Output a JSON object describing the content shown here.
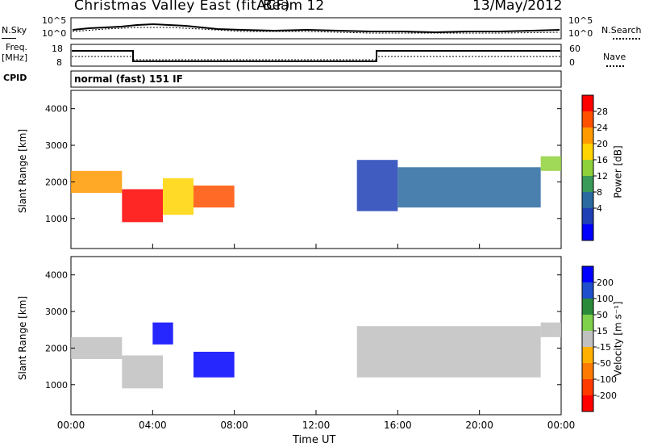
{
  "header": {
    "title": "Christmas Valley East (fitACF)",
    "beam": "Beam 12",
    "date": "13/May/2012"
  },
  "top_panels": {
    "nsky_label": "N.Sky",
    "nsearch_label": "N.Search",
    "noise_ticks": [
      "10^5",
      "10^0"
    ],
    "freq_label_1": "Freq.",
    "freq_label_2": "[MHz]",
    "freq_ticks": [
      "18",
      "8"
    ],
    "nave_label": "Nave",
    "nave_ticks": [
      "60",
      "0"
    ],
    "cpid_label": "CPID",
    "cpid_value": "normal (fast) 151 IF"
  },
  "chart_data": [
    {
      "type": "heatmap",
      "name": "power",
      "ylabel": "Slant Range [km]",
      "yticks": [
        "4000",
        "3000",
        "2000",
        "1000"
      ],
      "ylim": [
        180,
        4500
      ],
      "xlim_hours": [
        0,
        24
      ],
      "colorbar_label": "Power [dB]",
      "colorbar_ticks": [
        "28",
        "24",
        "20",
        "16",
        "12",
        "8",
        "4"
      ],
      "colorbar_colors": [
        "#ff0000",
        "#ff5000",
        "#ff9a00",
        "#ffd400",
        "#8fd13a",
        "#3a9a5a",
        "#2a6aa0",
        "#1f3fb5",
        "#0000ff"
      ],
      "echo_bands": [
        {
          "start_h": 0.0,
          "end_h": 2.5,
          "range_start_km": 1700,
          "range_end_km": 2300,
          "power_db": 22
        },
        {
          "start_h": 2.5,
          "end_h": 4.5,
          "range_start_km": 900,
          "range_end_km": 1800,
          "power_db": 28
        },
        {
          "start_h": 4.5,
          "end_h": 6.0,
          "range_start_km": 1100,
          "range_end_km": 2100,
          "power_db": 20
        },
        {
          "start_h": 6.0,
          "end_h": 8.0,
          "range_start_km": 1300,
          "range_end_km": 1900,
          "power_db": 26
        },
        {
          "start_h": 14.0,
          "end_h": 16.0,
          "range_start_km": 1200,
          "range_end_km": 2600,
          "power_db": 6
        },
        {
          "start_h": 16.0,
          "end_h": 23.0,
          "range_start_km": 1300,
          "range_end_km": 2400,
          "power_db": 8
        },
        {
          "start_h": 23.0,
          "end_h": 24.0,
          "range_start_km": 2300,
          "range_end_km": 2700,
          "power_db": 16
        }
      ]
    },
    {
      "type": "heatmap",
      "name": "velocity",
      "ylabel": "Slant Range [km]",
      "yticks": [
        "4000",
        "3000",
        "2000",
        "1000"
      ],
      "ylim": [
        180,
        4500
      ],
      "xlim_hours": [
        0,
        24
      ],
      "colorbar_label": "Velocity [m s⁻¹]",
      "colorbar_ticks": [
        "200",
        "100",
        "50",
        "15",
        "-15",
        "-50",
        "-100",
        "-200"
      ],
      "colorbar_colors": [
        "#0000ff",
        "#1f4fcc",
        "#2a8a3a",
        "#7fd04a",
        "#c0c0c0",
        "#ffb000",
        "#ff7a00",
        "#ff3a00",
        "#ff0000"
      ],
      "echo_bands": [
        {
          "start_h": 0.0,
          "end_h": 2.5,
          "range_start_km": 1700,
          "range_end_km": 2300,
          "velocity": 0
        },
        {
          "start_h": 2.5,
          "end_h": 4.5,
          "range_start_km": 900,
          "range_end_km": 1800,
          "velocity": 0
        },
        {
          "start_h": 4.0,
          "end_h": 5.0,
          "range_start_km": 2100,
          "range_end_km": 2700,
          "velocity": 200
        },
        {
          "start_h": 6.0,
          "end_h": 8.0,
          "range_start_km": 1200,
          "range_end_km": 1900,
          "velocity": 200
        },
        {
          "start_h": 14.0,
          "end_h": 23.0,
          "range_start_km": 1200,
          "range_end_km": 2600,
          "velocity": 0
        },
        {
          "start_h": 23.0,
          "end_h": 24.0,
          "range_start_km": 2300,
          "range_end_km": 2700,
          "velocity": 0
        }
      ]
    }
  ],
  "x_axis": {
    "ticks": [
      "00:00",
      "04:00",
      "08:00",
      "12:00",
      "16:00",
      "20:00",
      "00:00"
    ],
    "label": "Time UT"
  }
}
